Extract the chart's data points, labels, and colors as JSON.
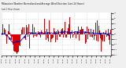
{
  "title": "Milwaukee Weather Normalized and Average Wind Direction (Last 24 Hours)",
  "subtitle": "Last 1 Hour shown",
  "bg_color": "#f0f0f0",
  "plot_bg_color": "#ffffff",
  "bar_color": "#dd0000",
  "line_color": "#0000cc",
  "grid_color": "#bbbbbb",
  "n_points": 288,
  "ylim": [
    -1.05,
    1.05
  ],
  "seed": 42,
  "figsize": [
    1.6,
    0.87
  ],
  "dpi": 100
}
